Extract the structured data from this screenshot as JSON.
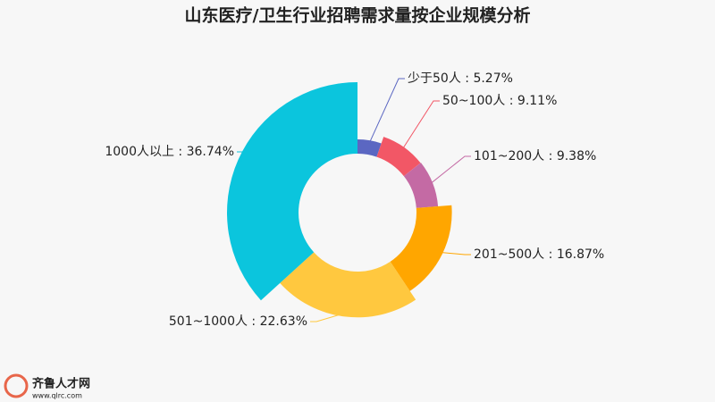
{
  "chart_data": {
    "type": "rose",
    "title": "山东医疗/卫生行业招聘需求量按企业规模分析",
    "categories": [
      "少于50人",
      "50~100人",
      "101~200人",
      "201~500人",
      "501~1000人",
      "1000人以上"
    ],
    "values": [
      5.27,
      9.11,
      9.38,
      16.87,
      22.63,
      36.74
    ],
    "value_labels": [
      "5.27%",
      "9.11%",
      "9.38%",
      "16.87%",
      "22.63%",
      "36.74%"
    ],
    "label_separator": " : ",
    "colors": [
      "#5b67c2",
      "#f25766",
      "#c46aa4",
      "#ffa600",
      "#ffc83f",
      "#0bc5dd"
    ]
  },
  "watermark": {
    "name": "齐鲁人才网",
    "url": "www.qlrc.com"
  }
}
